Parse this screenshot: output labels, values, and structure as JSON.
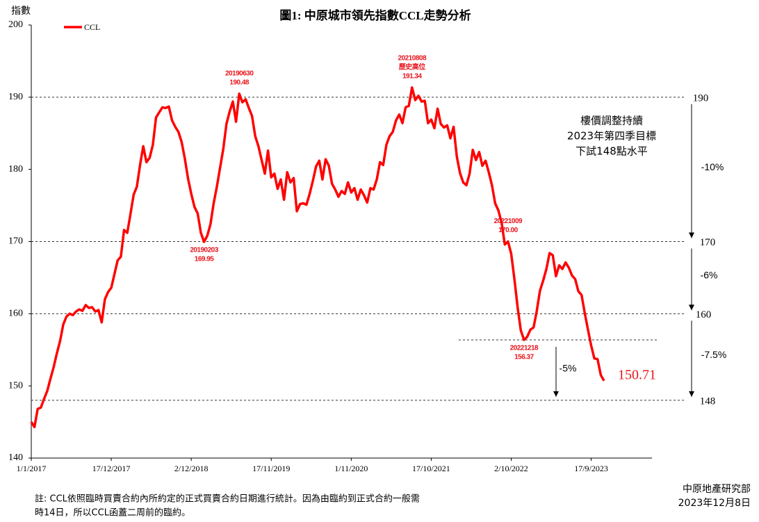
{
  "chart_data": {
    "type": "line",
    "title": "圖1: 中原城市領先指數CCL走勢分析",
    "y_label": "指數",
    "ylim": [
      140,
      200
    ],
    "yticks": [
      140,
      150,
      160,
      170,
      180,
      190,
      200
    ],
    "categories": [
      "1/1/2017",
      null,
      null,
      null,
      null,
      null,
      null,
      null,
      null,
      null,
      null,
      null,
      null,
      null,
      null,
      null,
      null,
      null,
      null,
      null,
      null,
      null,
      null,
      null,
      null,
      "17/12/2017",
      null,
      null,
      null,
      null,
      null,
      null,
      null,
      null,
      null,
      null,
      null,
      null,
      null,
      null,
      null,
      null,
      null,
      null,
      null,
      null,
      null,
      null,
      null,
      null,
      "2/12/2018",
      null,
      null,
      null,
      null,
      null,
      null,
      null,
      null,
      null,
      null,
      null,
      null,
      null,
      null,
      null,
      null,
      null,
      null,
      null,
      null,
      null,
      null,
      null,
      null,
      "17/11/2019",
      null,
      null,
      null,
      null,
      null,
      null,
      null,
      null,
      null,
      null,
      null,
      null,
      null,
      null,
      null,
      null,
      null,
      null,
      null,
      null,
      null,
      null,
      null,
      null,
      "1/11/2020",
      null,
      null,
      null,
      null,
      null,
      null,
      null,
      null,
      null,
      null,
      null,
      null,
      null,
      null,
      null,
      null,
      null,
      null,
      null,
      null,
      null,
      null,
      null,
      null,
      "17/10/2021",
      null,
      null,
      null,
      null,
      null,
      null,
      null,
      null,
      null,
      null,
      null,
      null,
      null,
      null,
      null,
      null,
      null,
      null,
      null,
      null,
      null,
      null,
      null,
      null,
      "2/10/2022",
      null,
      null,
      null,
      null,
      null,
      null,
      null,
      null,
      null,
      null,
      null,
      null,
      null,
      null,
      null,
      null,
      null,
      null,
      null,
      null,
      null,
      null,
      null,
      null,
      "17/9/2023",
      null,
      null,
      null,
      null,
      null,
      null,
      null,
      null,
      null,
      null,
      null,
      null,
      null,
      null,
      null,
      null,
      null,
      null,
      null
    ],
    "series": [
      {
        "name": "CCL",
        "color": "#ff0000",
        "values": [
          145.0,
          144.3,
          146.8,
          147.0,
          148.2,
          149.3,
          151.0,
          152.6,
          154.5,
          156.2,
          158.5,
          159.6,
          160.0,
          159.8,
          160.3,
          160.6,
          160.4,
          161.2,
          160.8,
          160.9,
          160.3,
          160.5,
          158.8,
          162.0,
          163.0,
          163.6,
          165.5,
          167.4,
          167.9,
          171.6,
          171.2,
          173.8,
          176.5,
          177.6,
          180.6,
          183.2,
          181.0,
          181.6,
          183.4,
          187.2,
          187.9,
          188.6,
          188.5,
          188.7,
          186.8,
          185.9,
          185.2,
          183.8,
          181.5,
          178.7,
          176.6,
          174.8,
          173.9,
          171.2,
          169.95,
          170.8,
          172.4,
          175.3,
          177.6,
          180.2,
          182.8,
          186.3,
          188.0,
          189.4,
          186.6,
          190.48,
          189.3,
          189.7,
          188.5,
          187.4,
          184.6,
          183.2,
          181.3,
          179.4,
          182.6,
          178.9,
          179.4,
          177.3,
          178.6,
          175.8,
          179.6,
          178.2,
          178.8,
          174.2,
          175.2,
          175.3,
          175.1,
          176.6,
          178.4,
          180.4,
          181.2,
          178.6,
          181.4,
          180.5,
          178.0,
          177.2,
          176.2,
          177.0,
          176.6,
          178.2,
          176.8,
          177.4,
          175.8,
          177.2,
          176.4,
          175.4,
          177.4,
          177.2,
          178.6,
          181.0,
          180.6,
          183.4,
          184.6,
          185.2,
          186.8,
          187.6,
          186.4,
          188.6,
          188.8,
          191.34,
          189.6,
          190.2,
          189.4,
          189.5,
          186.4,
          186.9,
          185.7,
          188.4,
          186.3,
          185.8,
          186.1,
          184.3,
          185.9,
          181.8,
          179.5,
          178.2,
          177.8,
          179.4,
          182.7,
          181.3,
          182.4,
          180.5,
          181.2,
          179.6,
          177.8,
          175.3,
          174.3,
          172.6,
          169.6,
          170,
          168.3,
          164.8,
          160.9,
          157.7,
          156.37,
          156.8,
          157.8,
          158.1,
          160.4,
          163.2,
          164.6,
          166.2,
          168.4,
          168.1,
          165.2,
          166.7,
          166.2,
          167.1,
          166.4,
          165.3,
          164.8,
          163.1,
          162.6,
          160.1,
          157.8,
          155.6,
          153.8,
          153.7,
          151.5,
          150.71,
          null,
          null,
          null,
          null,
          null,
          null,
          null,
          null,
          null,
          null,
          null,
          null,
          null,
          null,
          null
        ]
      }
    ],
    "annotations": [
      {
        "date": "20190203",
        "value": 169.95
      },
      {
        "date": "20190630",
        "value": 190.48
      },
      {
        "date": "20210808",
        "note": "歷史高位",
        "value": 191.34
      },
      {
        "date": "20221009",
        "value": 170,
        "value_label": "170.00"
      },
      {
        "date": "20221218",
        "value": 156.37
      }
    ],
    "reference_lines": [
      190,
      170,
      160,
      148
    ],
    "drops": [
      "-10%",
      "-6%",
      "-7.5%",
      "-5%"
    ],
    "outlook": [
      "樓價調整持續",
      "2023年第四季目標",
      "下試148點水平"
    ],
    "footnote": [
      "註: CCL依照臨時買賣合約內所約定的正式買賣合約日期進行統計。因為由臨約到正式合約一般需",
      "時14日，所以CCL函蓋二周前的臨約。"
    ],
    "source": [
      "中原地產研究部",
      "2023年12月8日"
    ]
  }
}
